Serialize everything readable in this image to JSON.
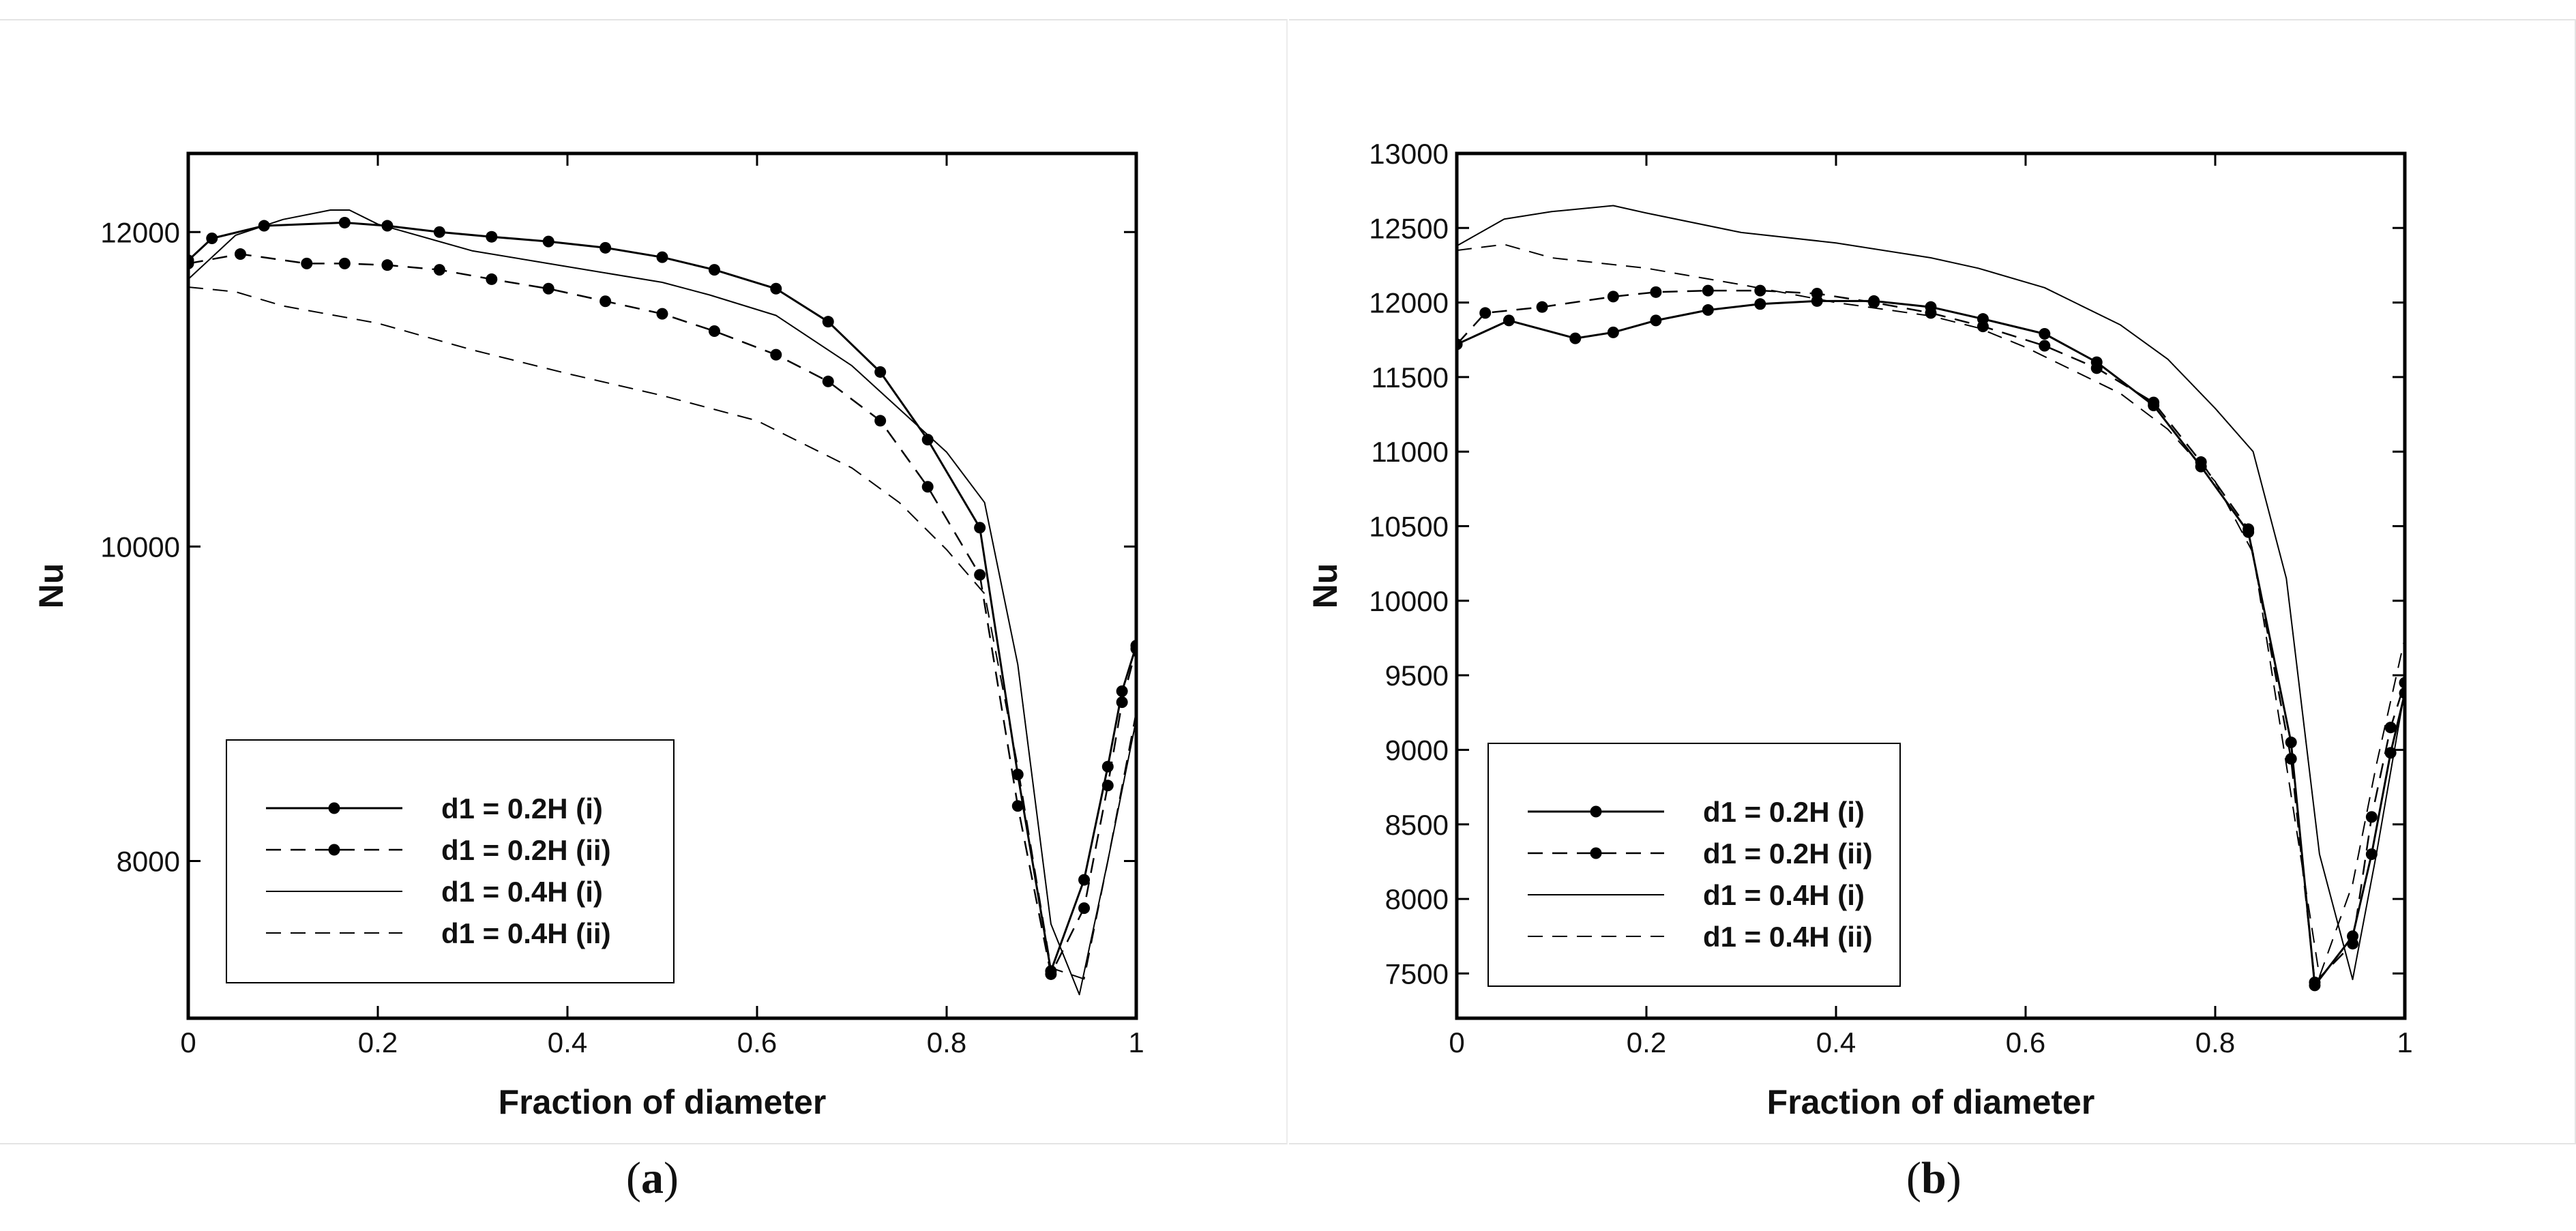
{
  "figure": {
    "captions": [
      {
        "open": "(",
        "letter": "a",
        "close": ")"
      },
      {
        "open": "(",
        "letter": "b",
        "close": ")"
      }
    ]
  },
  "chart_data": [
    {
      "id": "a",
      "type": "line",
      "xlabel": "Fraction of diameter",
      "ylabel": "Nu",
      "xlim": [
        0,
        1
      ],
      "ylim": [
        7000,
        12500
      ],
      "xticks": [
        0,
        0.2,
        0.4,
        0.6,
        0.8,
        1
      ],
      "xtick_labels": [
        "0",
        "0.2",
        "0.4",
        "0.6",
        "0.8",
        "1"
      ],
      "yticks": [
        8000,
        10000,
        12000
      ],
      "ytick_labels": [
        "8000",
        "10000",
        "12000"
      ],
      "legend": {
        "position": "bottom-left"
      },
      "series": [
        {
          "name": "d1 = 0.2H (i)",
          "style": "solid",
          "markers": true,
          "x": [
            0,
            0.025,
            0.08,
            0.165,
            0.21,
            0.265,
            0.32,
            0.38,
            0.44,
            0.5,
            0.555,
            0.62,
            0.675,
            0.73,
            0.78,
            0.835,
            0.875,
            0.91,
            0.945,
            0.97,
            0.985,
            1
          ],
          "y": [
            11820,
            11960,
            12040,
            12060,
            12040,
            12000,
            11970,
            11940,
            11900,
            11840,
            11760,
            11640,
            11430,
            11110,
            10680,
            10120,
            8550,
            7300,
            7880,
            8600,
            9080,
            9370
          ]
        },
        {
          "name": "d1 = 0.2H (ii)",
          "style": "dashed",
          "markers": true,
          "x": [
            0,
            0.055,
            0.125,
            0.165,
            0.21,
            0.265,
            0.32,
            0.38,
            0.44,
            0.5,
            0.555,
            0.62,
            0.675,
            0.73,
            0.78,
            0.835,
            0.875,
            0.91,
            0.945,
            0.97,
            0.985,
            1
          ],
          "y": [
            11800,
            11860,
            11800,
            11800,
            11790,
            11760,
            11700,
            11640,
            11560,
            11480,
            11370,
            11220,
            11050,
            10800,
            10380,
            9820,
            8350,
            7280,
            7700,
            8480,
            9010,
            9350
          ]
        },
        {
          "name": "d1 = 0.4H (i)",
          "style": "solid-thin",
          "markers": false,
          "x": [
            0,
            0.05,
            0.1,
            0.15,
            0.17,
            0.2,
            0.3,
            0.4,
            0.5,
            0.55,
            0.62,
            0.7,
            0.8,
            0.84,
            0.875,
            0.91,
            0.94,
            0.97,
            1
          ],
          "y": [
            11700,
            11980,
            12080,
            12140,
            12140,
            12050,
            11880,
            11780,
            11680,
            11600,
            11470,
            11150,
            10600,
            10280,
            9250,
            7600,
            7150,
            8000,
            8900
          ]
        },
        {
          "name": "d1 = 0.4H (ii)",
          "style": "dashed-thin",
          "markers": false,
          "x": [
            0,
            0.05,
            0.1,
            0.2,
            0.3,
            0.4,
            0.5,
            0.6,
            0.7,
            0.75,
            0.8,
            0.84,
            0.875,
            0.91,
            0.945,
            0.97,
            1
          ],
          "y": [
            11650,
            11620,
            11530,
            11420,
            11250,
            11100,
            10960,
            10800,
            10500,
            10280,
            9980,
            9700,
            8600,
            7320,
            7250,
            8000,
            8950
          ]
        }
      ]
    },
    {
      "id": "b",
      "type": "line",
      "xlabel": "Fraction of diameter",
      "ylabel": "Nu",
      "xlim": [
        0,
        1
      ],
      "ylim": [
        7200,
        13000
      ],
      "xticks": [
        0,
        0.2,
        0.4,
        0.6,
        0.8,
        1
      ],
      "xtick_labels": [
        "0",
        "0.2",
        "0.4",
        "0.6",
        "0.8",
        "1"
      ],
      "yticks": [
        7500,
        8000,
        8500,
        9000,
        9500,
        10000,
        10500,
        11000,
        11500,
        12000,
        12500,
        13000
      ],
      "ytick_labels": [
        "7500",
        "8000",
        "8500",
        "9000",
        "9500",
        "10000",
        "10500",
        "11000",
        "11500",
        "12000",
        "12500",
        "13000"
      ],
      "legend": {
        "position": "bottom-left"
      },
      "series": [
        {
          "name": "d1 = 0.2H (i)",
          "style": "solid",
          "markers": true,
          "x": [
            0,
            0.055,
            0.125,
            0.165,
            0.21,
            0.265,
            0.32,
            0.38,
            0.44,
            0.5,
            0.555,
            0.62,
            0.675,
            0.735,
            0.785,
            0.835,
            0.88,
            0.905,
            0.945,
            0.965,
            0.985,
            1
          ],
          "y": [
            11720,
            11880,
            11760,
            11800,
            11880,
            11950,
            11990,
            12010,
            12010,
            11970,
            11890,
            11790,
            11600,
            11310,
            10900,
            10460,
            9050,
            7420,
            7750,
            8300,
            8980,
            9380
          ]
        },
        {
          "name": "d1 = 0.2H (ii)",
          "style": "dashed",
          "markers": true,
          "x": [
            0,
            0.03,
            0.09,
            0.165,
            0.21,
            0.265,
            0.32,
            0.38,
            0.44,
            0.5,
            0.555,
            0.62,
            0.675,
            0.735,
            0.785,
            0.835,
            0.88,
            0.905,
            0.945,
            0.965,
            0.985,
            1
          ],
          "y": [
            11720,
            11930,
            11970,
            12040,
            12070,
            12080,
            12080,
            12060,
            12000,
            11930,
            11840,
            11710,
            11560,
            11330,
            10930,
            10480,
            8940,
            7440,
            7700,
            8550,
            9150,
            9450
          ]
        },
        {
          "name": "d1 = 0.4H (i)",
          "style": "solid-thin",
          "markers": false,
          "x": [
            0,
            0.05,
            0.1,
            0.165,
            0.2,
            0.3,
            0.4,
            0.5,
            0.55,
            0.62,
            0.7,
            0.75,
            0.8,
            0.84,
            0.875,
            0.91,
            0.945,
            0.97,
            1
          ],
          "y": [
            12380,
            12560,
            12610,
            12650,
            12600,
            12470,
            12400,
            12300,
            12230,
            12100,
            11850,
            11620,
            11290,
            11000,
            10150,
            8300,
            7460,
            8300,
            9400
          ]
        },
        {
          "name": "d1 = 0.4H (ii)",
          "style": "dashed-thin",
          "markers": false,
          "x": [
            0,
            0.05,
            0.1,
            0.2,
            0.3,
            0.4,
            0.5,
            0.55,
            0.6,
            0.7,
            0.75,
            0.8,
            0.84,
            0.875,
            0.91,
            0.945,
            0.97,
            1
          ],
          "y": [
            12350,
            12390,
            12300,
            12230,
            12120,
            12000,
            11910,
            11830,
            11700,
            11390,
            11150,
            10800,
            10320,
            8900,
            7480,
            8100,
            8900,
            9750
          ]
        }
      ]
    }
  ]
}
